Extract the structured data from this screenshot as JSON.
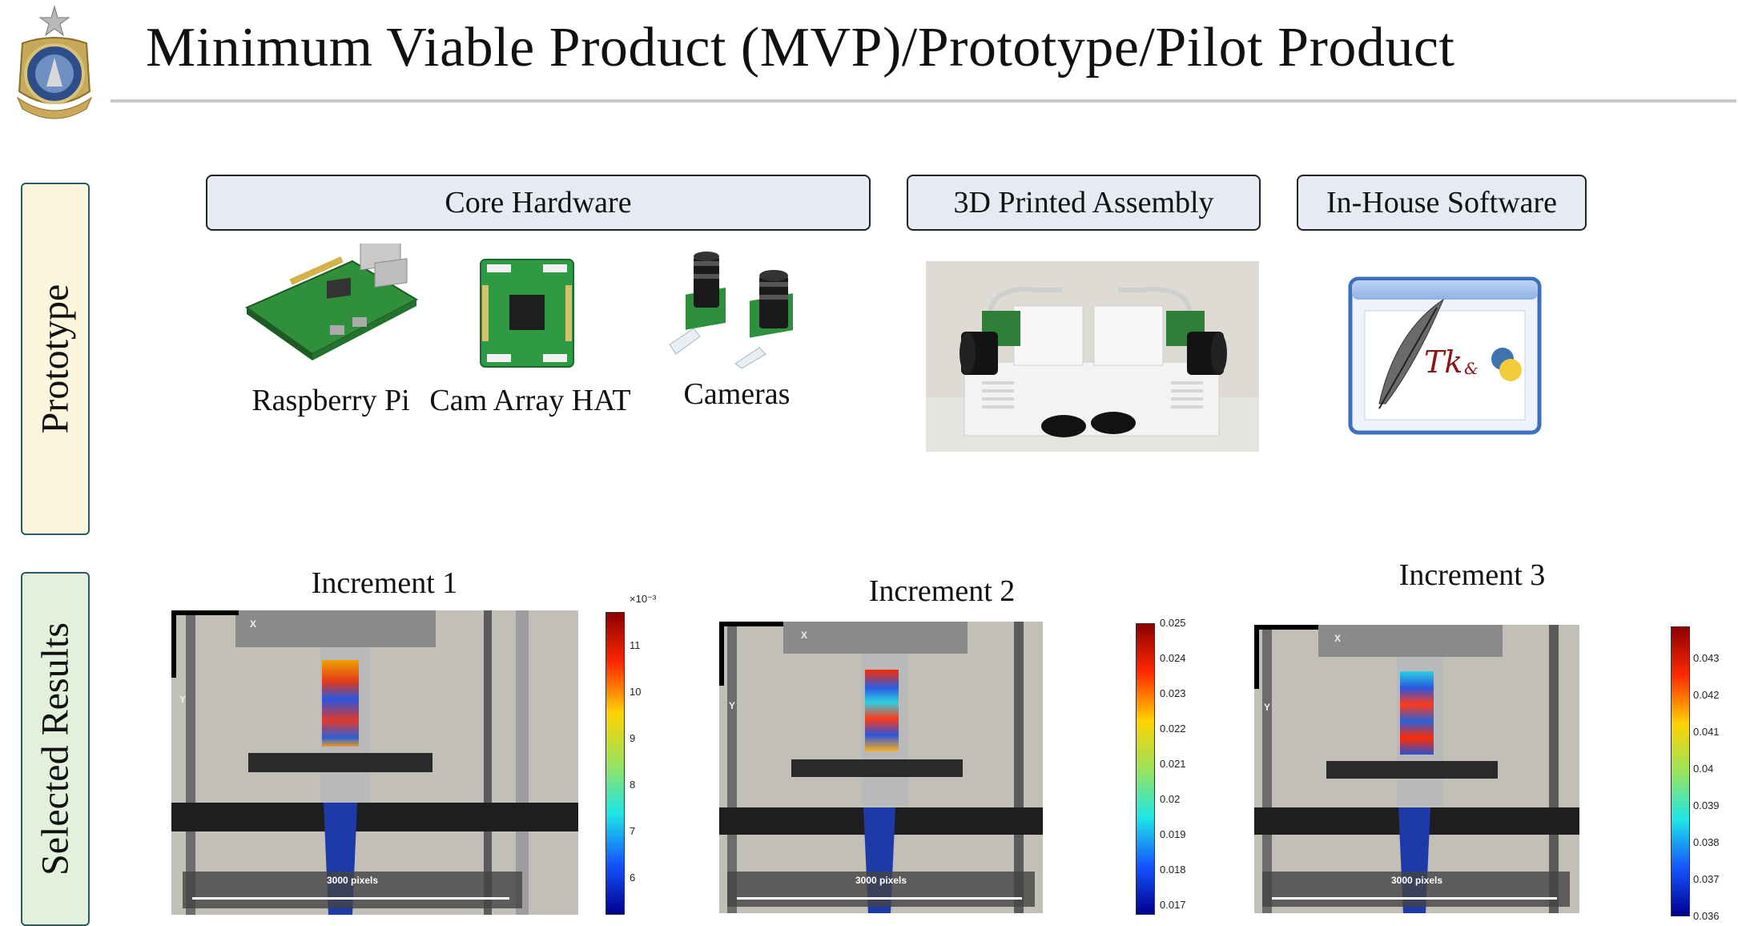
{
  "page": {
    "title": "Minimum Viable Product (MVP)/Prototype/Pilot Product"
  },
  "sidebar": {
    "prototype_label": "Prototype",
    "results_label": "Selected Results"
  },
  "colors": {
    "prototype_bg": "#fbf6dc",
    "results_bg": "#e3f0dc",
    "header_box": "#e6ebf3",
    "rule": "#c9c9c9"
  },
  "sections": {
    "core_hardware": {
      "label": "Core Hardware",
      "items": [
        {
          "caption": "Raspberry Pi"
        },
        {
          "caption": "Cam Array HAT"
        },
        {
          "caption": "Cameras"
        }
      ]
    },
    "printed_assembly": {
      "label": "3D Printed Assembly"
    },
    "software": {
      "label": "In-House Software",
      "logo_text": "Tk",
      "logo_amp": "&"
    }
  },
  "results": [
    {
      "title": "Increment 1",
      "scale_label": "3000 pixels",
      "axis_x": "X",
      "axis_y": "Y",
      "colorbar_exponent": "×10⁻³",
      "colorbar_ticks": [
        "11",
        "10",
        "9",
        "8",
        "7",
        "6"
      ]
    },
    {
      "title": "Increment 2",
      "scale_label": "3000 pixels",
      "axis_x": "X",
      "axis_y": "Y",
      "colorbar_ticks": [
        "0.025",
        "0.024",
        "0.023",
        "0.022",
        "0.021",
        "0.02",
        "0.019",
        "0.018",
        "0.017"
      ]
    },
    {
      "title": "Increment 3",
      "scale_label": "3000 pixels",
      "axis_x": "X",
      "axis_y": "Y",
      "colorbar_ticks": [
        "0.043",
        "0.042",
        "0.041",
        "0.04",
        "0.039",
        "0.038",
        "0.037",
        "0.036"
      ]
    }
  ]
}
